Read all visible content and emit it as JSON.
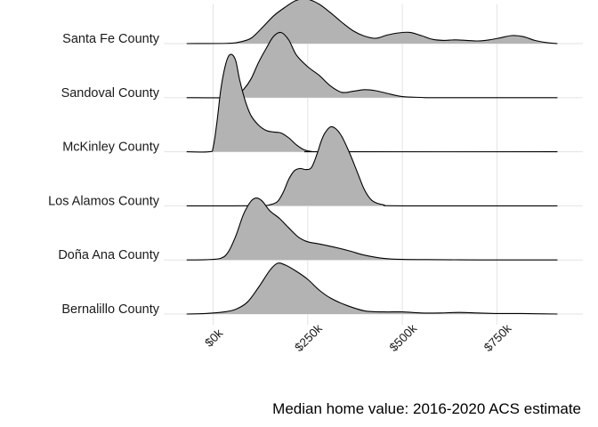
{
  "chart_data": {
    "type": "ridgeline",
    "xlabel": "Median home value: 2016-2020 ACS estimate",
    "ylabel": "",
    "xlim": [
      -50000,
      940000
    ],
    "x_ticks": [
      {
        "value": 0,
        "label": "$0k"
      },
      {
        "value": 250000,
        "label": "$250k"
      },
      {
        "value": 500000,
        "label": "$500k"
      },
      {
        "value": 750000,
        "label": "$750k"
      }
    ],
    "fill_color": "#b3b3b3",
    "line_color": "#000000",
    "grid": true,
    "series": [
      {
        "name": "Bernalillo County",
        "x": [
          -70000,
          -20000,
          30000,
          60000,
          90000,
          120000,
          150000,
          170000,
          190000,
          220000,
          250000,
          280000,
          310000,
          350000,
          400000,
          450000,
          500000,
          550000,
          600000,
          650000,
          700000,
          750000,
          800000,
          850000,
          910000
        ],
        "y": [
          0,
          0.01,
          0.04,
          0.09,
          0.22,
          0.5,
          0.82,
          0.95,
          0.92,
          0.8,
          0.65,
          0.45,
          0.3,
          0.17,
          0.06,
          0.04,
          0.04,
          0.02,
          0.02,
          0.03,
          0.02,
          0.01,
          0.01,
          0.005,
          0
        ]
      },
      {
        "name": "Doña Ana County",
        "x": [
          -70000,
          -20000,
          20000,
          40000,
          60000,
          80000,
          100000,
          115000,
          130000,
          150000,
          175000,
          200000,
          225000,
          250000,
          280000,
          320000,
          360000,
          400000,
          450000,
          500000,
          600000,
          700000,
          800000,
          910000
        ],
        "y": [
          0,
          0.005,
          0.03,
          0.15,
          0.45,
          0.85,
          1.1,
          1.16,
          1.1,
          0.92,
          0.78,
          0.6,
          0.43,
          0.34,
          0.3,
          0.24,
          0.17,
          0.09,
          0.03,
          0.01,
          0.005,
          0,
          0,
          0
        ]
      },
      {
        "name": "Los Alamos County",
        "x": [
          -70000,
          50000,
          130000,
          150000,
          170000,
          185000,
          200000,
          215000,
          230000,
          245000,
          260000,
          275000,
          285000,
          295000,
          310000,
          325000,
          340000,
          360000,
          380000,
          400000,
          420000,
          450000,
          500000,
          910000
        ],
        "y": [
          0,
          0,
          0.005,
          0.02,
          0.08,
          0.25,
          0.5,
          0.66,
          0.7,
          0.68,
          0.72,
          0.98,
          1.2,
          1.36,
          1.48,
          1.44,
          1.3,
          1.0,
          0.65,
          0.3,
          0.1,
          0.02,
          0,
          0
        ]
      },
      {
        "name": "McKinley County",
        "x": [
          -70000,
          -10000,
          0,
          10000,
          20000,
          30000,
          40000,
          50000,
          60000,
          70000,
          85000,
          100000,
          120000,
          140000,
          160000,
          180000,
          200000,
          220000,
          240000,
          260000,
          300000,
          910000
        ],
        "y": [
          0,
          0,
          0.08,
          0.55,
          1.15,
          1.55,
          1.78,
          1.82,
          1.7,
          1.35,
          0.95,
          0.68,
          0.5,
          0.4,
          0.37,
          0.35,
          0.26,
          0.13,
          0.04,
          0.005,
          0,
          0
        ]
      },
      {
        "name": "Sandoval County",
        "x": [
          -70000,
          30000,
          60000,
          80000,
          100000,
          120000,
          140000,
          160000,
          180000,
          200000,
          220000,
          250000,
          280000,
          310000,
          340000,
          370000,
          400000,
          430000,
          460000,
          500000,
          550000,
          600000,
          910000
        ],
        "y": [
          0,
          0,
          0.03,
          0.15,
          0.35,
          0.66,
          0.92,
          1.15,
          1.22,
          1.08,
          0.8,
          0.58,
          0.42,
          0.22,
          0.1,
          0.12,
          0.15,
          0.13,
          0.08,
          0.02,
          0.005,
          0,
          0
        ]
      },
      {
        "name": "Santa Fe County",
        "x": [
          -70000,
          40000,
          70000,
          100000,
          130000,
          160000,
          190000,
          220000,
          250000,
          280000,
          310000,
          340000,
          370000,
          400000,
          430000,
          460000,
          490000,
          520000,
          550000,
          580000,
          610000,
          640000,
          670000,
          700000,
          730000,
          760000,
          790000,
          820000,
          850000,
          880000,
          910000
        ],
        "y": [
          0,
          0.005,
          0.03,
          0.1,
          0.3,
          0.52,
          0.68,
          0.81,
          0.83,
          0.74,
          0.58,
          0.4,
          0.24,
          0.14,
          0.1,
          0.16,
          0.2,
          0.21,
          0.15,
          0.08,
          0.06,
          0.07,
          0.06,
          0.05,
          0.07,
          0.11,
          0.15,
          0.13,
          0.06,
          0.02,
          0
        ]
      }
    ]
  }
}
